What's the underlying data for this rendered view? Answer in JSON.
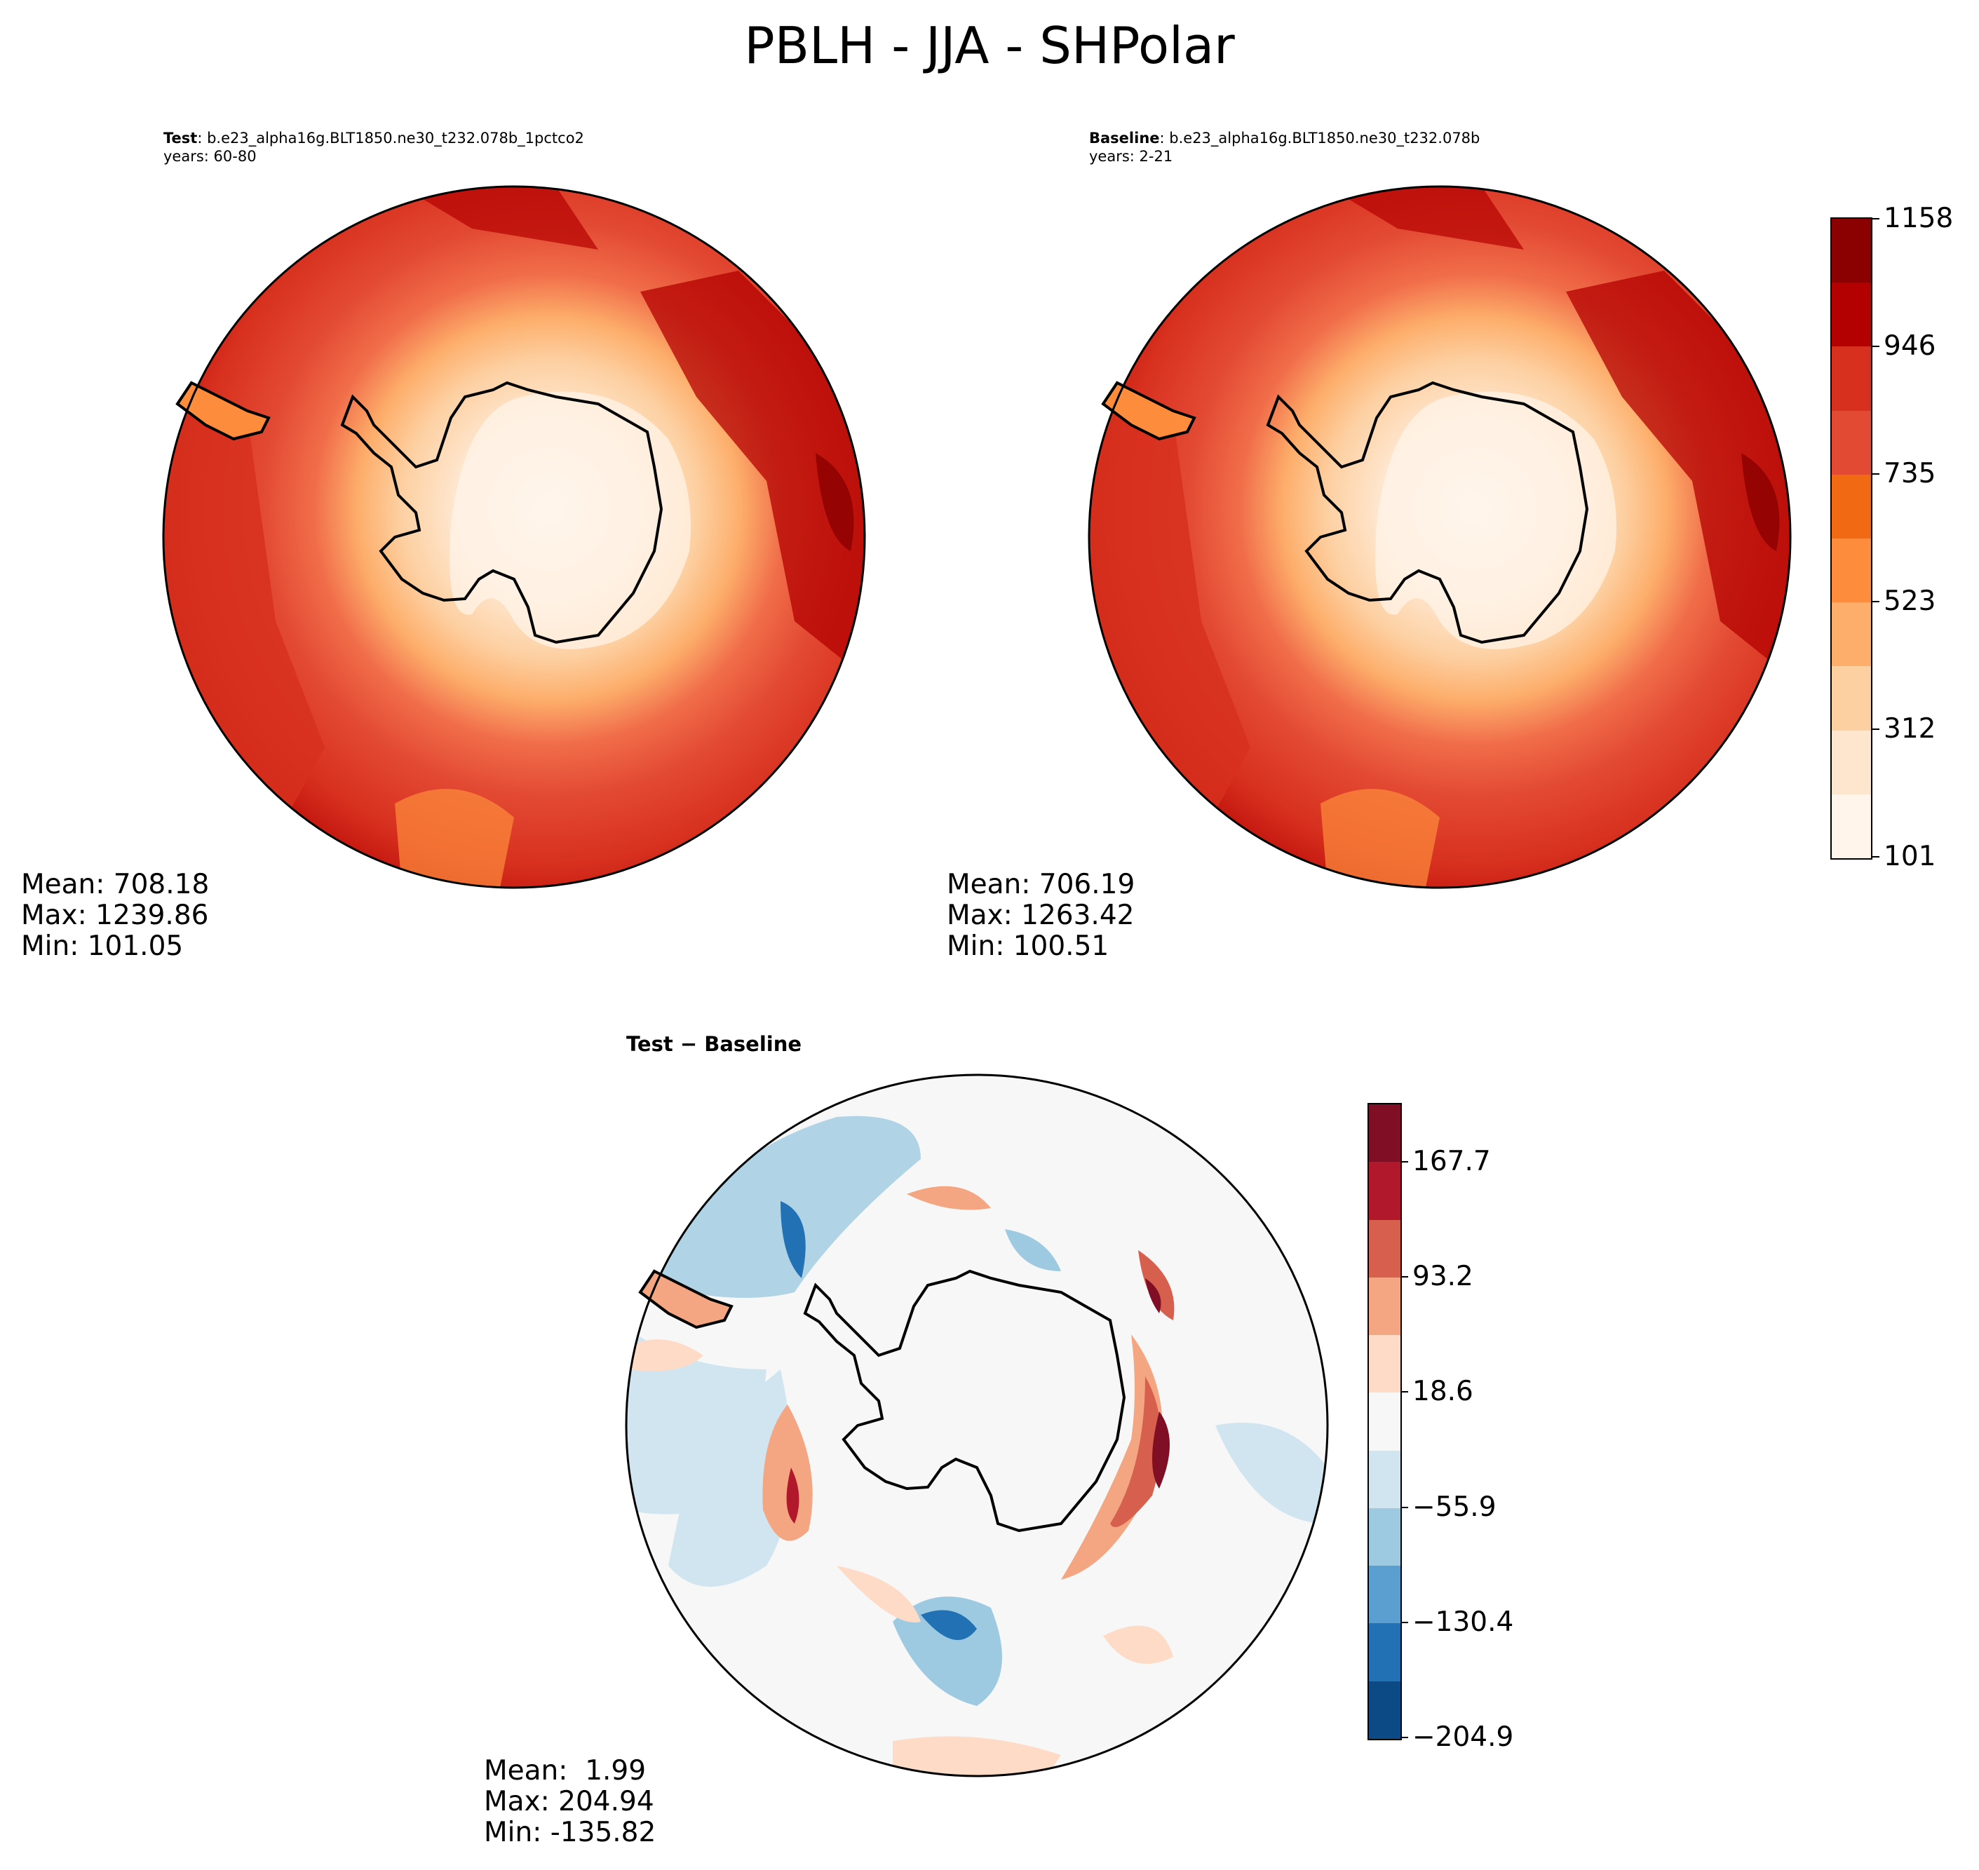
{
  "title": "PBLH - JJA - SHPolar",
  "panels": {
    "test": {
      "label_bold": "Test",
      "case": ": b.e23_alpha16g.BLT1850.ne30_t232.078b_1pctco2",
      "years": "years: 60-80",
      "mean": "Mean: 708.18",
      "max": "Max: 1239.86",
      "min": "Min: 101.05"
    },
    "baseline": {
      "label_bold": "Baseline",
      "case": ": b.e23_alpha16g.BLT1850.ne30_t232.078b",
      "years": "years: 2-21",
      "mean": "Mean: 706.19",
      "max": "Max: 1263.42",
      "min": "Min: 100.51"
    },
    "diff": {
      "title": "Test − Baseline",
      "mean": "Mean:  1.99",
      "max": "Max: 204.94",
      "min": "Min: -135.82"
    }
  },
  "colorbars": {
    "main": {
      "ticks": [
        "101",
        "312",
        "523",
        "735",
        "946",
        "1158"
      ],
      "colors": [
        "#fff5eb",
        "#fee6ce",
        "#fdd0a2",
        "#fdae6b",
        "#fd8d3c",
        "#f16913",
        "#e34a33",
        "#d7301f",
        "#b30000",
        "#8b0000"
      ]
    },
    "diff": {
      "ticks": [
        "−204.9",
        "−130.4",
        "−55.9",
        "18.6",
        "93.2",
        "167.7"
      ],
      "colors": [
        "#0b4a85",
        "#2271b5",
        "#5a9fd0",
        "#9ecae1",
        "#d1e5f0",
        "#f7f7f7",
        "#fddbc7",
        "#f4a582",
        "#d6604d",
        "#b2182b",
        "#800f26"
      ]
    }
  }
}
